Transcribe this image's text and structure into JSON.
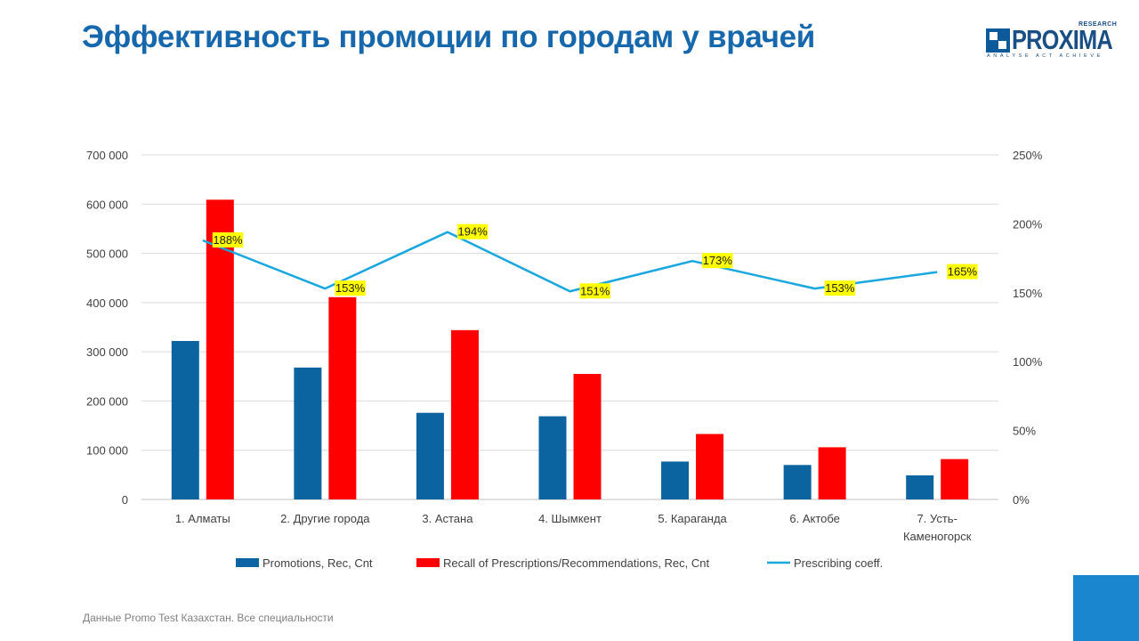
{
  "slide": {
    "title": "Эффективность промоции по городам у врачей",
    "footer": "Данные Promo  Test Казахстан.  Все специальности"
  },
  "logo": {
    "brand": "PROXIMA",
    "research": "RESEARCH",
    "tagline": "ANALYSE ACT ACHIEVE",
    "color": "#1a4f86"
  },
  "chart_data": {
    "type": "bar",
    "categories": [
      "1. Алматы",
      "2. Другие города",
      "3. Астана",
      "4. Шымкент",
      "5. Караганда",
      "6. Актобе",
      "7. Усть-Каменогорск"
    ],
    "category_lines": [
      [
        "1. Алматы"
      ],
      [
        "2. Другие города"
      ],
      [
        "3. Астана"
      ],
      [
        "4. Шымкент"
      ],
      [
        "5. Караганда"
      ],
      [
        "6. Актобе"
      ],
      [
        "7. Усть-",
        "Каменогорск"
      ]
    ],
    "series": [
      {
        "name": "Promotions, Rec, Cnt",
        "kind": "bar",
        "axis": "left",
        "color": "#0b64a0",
        "values": [
          322000,
          268000,
          176000,
          169000,
          77000,
          70000,
          49000
        ]
      },
      {
        "name": "Recall of Prescriptions/Recommendations, Rec, Cnt",
        "kind": "bar",
        "axis": "left",
        "color": "#ff0000",
        "values": [
          609000,
          411000,
          344000,
          255000,
          133000,
          106000,
          82000
        ]
      },
      {
        "name": "Prescribing coeff.",
        "kind": "line",
        "axis": "right",
        "color": "#1aa7e0",
        "values": [
          188,
          153,
          194,
          151,
          173,
          153,
          165
        ],
        "labels": [
          "188%",
          "153%",
          "194%",
          "151%",
          "173%",
          "153%",
          "165%"
        ],
        "label_bg": "#ffff00"
      }
    ],
    "y_left": {
      "ylim": [
        0,
        700000
      ],
      "ticks": [
        0,
        100000,
        200000,
        300000,
        400000,
        500000,
        600000,
        700000
      ],
      "tick_labels": [
        "0",
        "100 000",
        "200 000",
        "300 000",
        "400 000",
        "500 000",
        "600 000",
        "700 000"
      ]
    },
    "y_right": {
      "ylim": [
        0,
        250
      ],
      "ticks": [
        0,
        50,
        100,
        150,
        200,
        250
      ],
      "tick_labels": [
        "0%",
        "50%",
        "100%",
        "150%",
        "200%",
        "250%"
      ]
    },
    "grid": true,
    "legend_position": "bottom"
  }
}
